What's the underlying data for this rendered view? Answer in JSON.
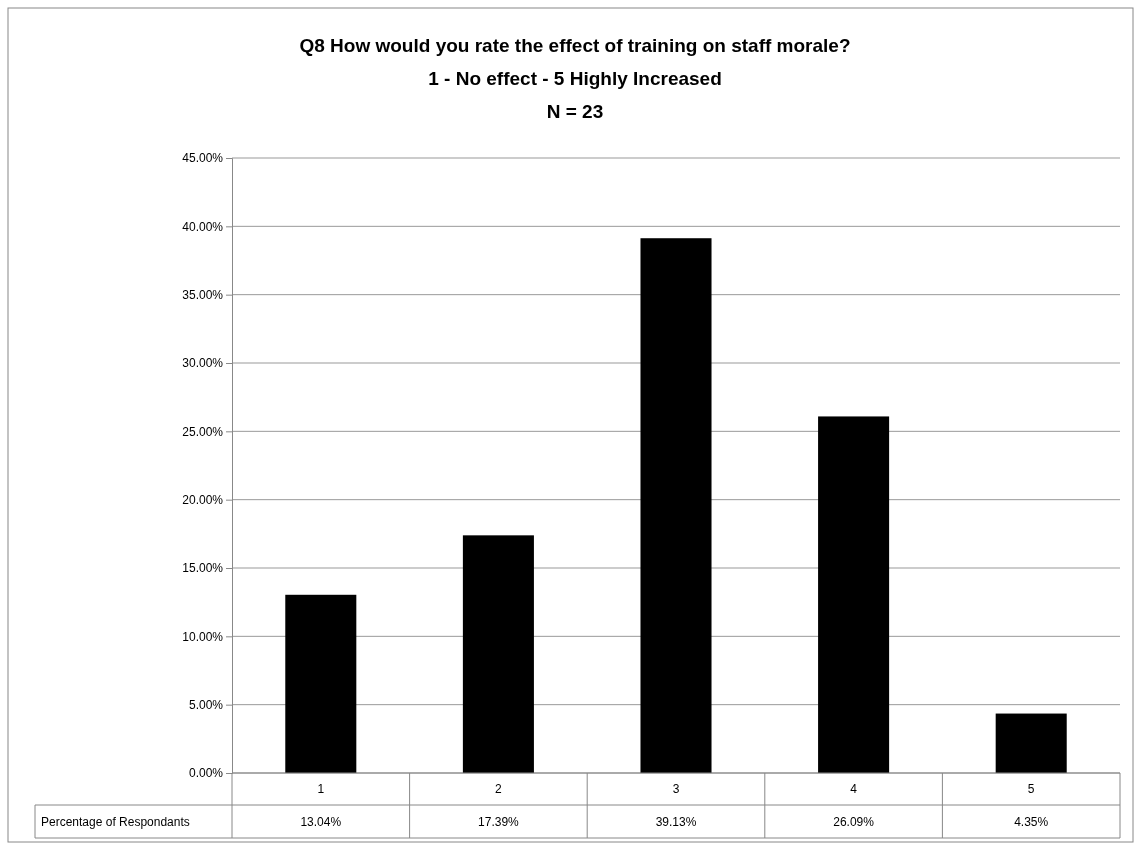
{
  "chart_data": {
    "type": "bar",
    "title": "Q8 How would you rate the effect of training on staff morale?\n1 - No effect - 5 Highly Increased\nN  = 23",
    "categories": [
      "1",
      "2",
      "3",
      "4",
      "5"
    ],
    "series": [
      {
        "name": "Percentage of Respondants",
        "color": "#000000",
        "values": [
          13.04,
          17.39,
          39.13,
          26.09,
          4.35
        ],
        "value_labels": [
          "13.04%",
          "17.39%",
          "39.13%",
          "26.09%",
          "4.35%"
        ]
      }
    ],
    "ylim": [
      0,
      45
    ],
    "yticks": [
      {
        "value": 0,
        "label": "0.00%"
      },
      {
        "value": 5,
        "label": "5.00%"
      },
      {
        "value": 10,
        "label": "10.00%"
      },
      {
        "value": 15,
        "label": "15.00%"
      },
      {
        "value": 20,
        "label": "20.00%"
      },
      {
        "value": 25,
        "label": "25.00%"
      },
      {
        "value": 30,
        "label": "30.00%"
      },
      {
        "value": 35,
        "label": "35.00%"
      },
      {
        "value": 40,
        "label": "40.00%"
      },
      {
        "value": 45,
        "label": "45.00%"
      }
    ],
    "grid": "y"
  }
}
